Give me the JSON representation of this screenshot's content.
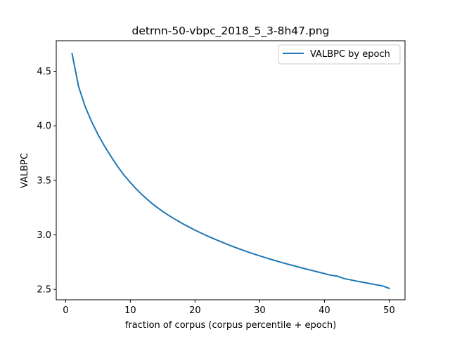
{
  "chart_data": {
    "type": "line",
    "title": "detrnn-50-vbpc_2018_5_3-8h47.png",
    "xlabel": "fraction of corpus (corpus percentile + epoch)",
    "ylabel": "VALBPC",
    "xlim": [
      -1.45,
      52.45
    ],
    "ylim": [
      2.405,
      4.78
    ],
    "xticks": [
      0,
      10,
      20,
      30,
      40,
      50
    ],
    "yticks": [
      2.5,
      3.0,
      3.5,
      4.0,
      4.5
    ],
    "xtick_labels": [
      "0",
      "10",
      "20",
      "30",
      "40",
      "50"
    ],
    "ytick_labels": [
      "2.5",
      "3.0",
      "3.5",
      "4.0",
      "4.5"
    ],
    "grid": false,
    "legend_position": "top-right",
    "series": [
      {
        "name": "VALBPC by epoch",
        "color": "#1f77b4",
        "x": [
          1,
          2,
          3,
          4,
          5,
          6,
          7,
          8,
          9,
          10,
          11,
          12,
          13,
          14,
          15,
          16,
          17,
          18,
          19,
          20,
          21,
          22,
          23,
          24,
          25,
          26,
          27,
          28,
          29,
          30,
          31,
          32,
          33,
          34,
          35,
          36,
          37,
          38,
          39,
          40,
          41,
          42,
          43,
          44,
          45,
          46,
          47,
          48,
          49,
          50
        ],
        "y": [
          4.66,
          4.36,
          4.18,
          4.04,
          3.92,
          3.815,
          3.72,
          3.63,
          3.55,
          3.48,
          3.415,
          3.358,
          3.305,
          3.258,
          3.215,
          3.176,
          3.14,
          3.106,
          3.074,
          3.044,
          3.015,
          2.988,
          2.962,
          2.937,
          2.913,
          2.89,
          2.868,
          2.847,
          2.827,
          2.808,
          2.789,
          2.771,
          2.754,
          2.737,
          2.721,
          2.705,
          2.69,
          2.675,
          2.66,
          2.645,
          2.63,
          2.622,
          2.6,
          2.588,
          2.576,
          2.565,
          2.554,
          2.543,
          2.532,
          2.51
        ]
      }
    ]
  }
}
